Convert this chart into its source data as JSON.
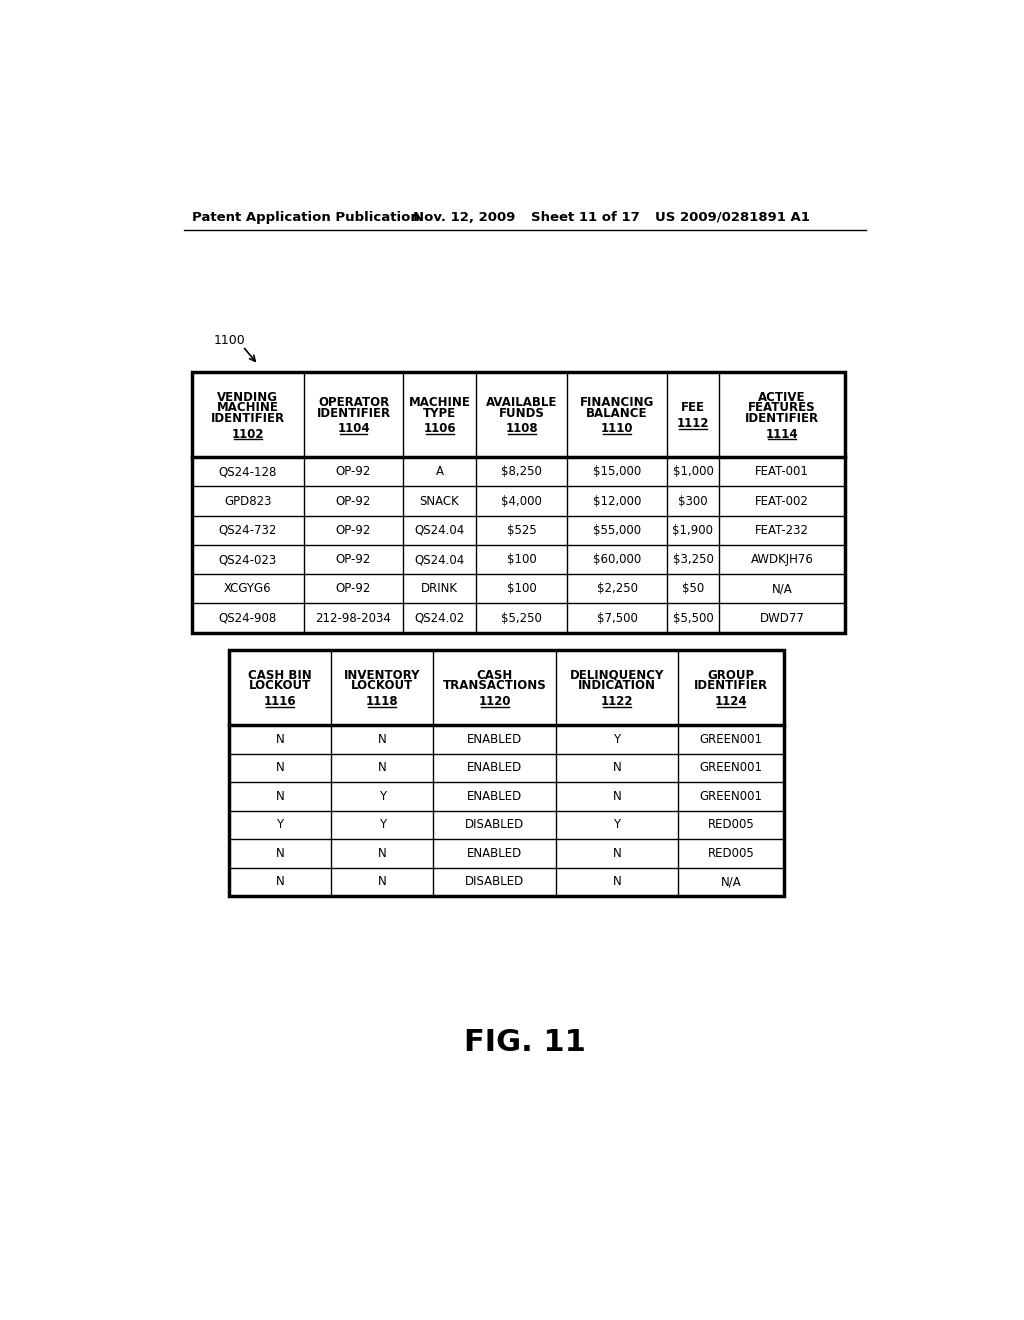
{
  "header_text": "Patent Application Publication",
  "header_date": "Nov. 12, 2009",
  "header_sheet": "Sheet 11 of 17",
  "header_patent": "US 2009/0281891 A1",
  "fig_label": "FIG. 11",
  "label_1100": "1100",
  "table1": {
    "col_headers": [
      [
        "VENDING\nMACHINE\nIDENTIFIER",
        "1102"
      ],
      [
        "OPERATOR\nIDENTIFIER",
        "1104"
      ],
      [
        "MACHINE\nTYPE",
        "1106"
      ],
      [
        "AVAILABLE\nFUNDS",
        "1108"
      ],
      [
        "FINANCING\nBALANCE",
        "1110"
      ],
      [
        "FEE",
        "1112"
      ],
      [
        "ACTIVE\nFEATURES\nIDENTIFIER",
        "1114"
      ]
    ],
    "rows": [
      [
        "QS24-128",
        "OP-92",
        "A",
        "$8,250",
        "$15,000",
        "$1,000",
        "FEAT-001"
      ],
      [
        "GPD823",
        "OP-92",
        "SNACK",
        "$4,000",
        "$12,000",
        "$300",
        "FEAT-002"
      ],
      [
        "QS24-732",
        "OP-92",
        "QS24.04",
        "$525",
        "$55,000",
        "$1,900",
        "FEAT-232"
      ],
      [
        "QS24-023",
        "OP-92",
        "QS24.04",
        "$100",
        "$60,000",
        "$3,250",
        "AWDKJH76"
      ],
      [
        "XCGYG6",
        "OP-92",
        "DRINK",
        "$100",
        "$2,250",
        "$50",
        "N/A"
      ],
      [
        "QS24-908",
        "212-98-2034",
        "QS24.02",
        "$5,250",
        "$7,500",
        "$5,500",
        "DWD77"
      ]
    ]
  },
  "table2": {
    "col_headers": [
      [
        "CASH BIN\nLOCKOUT",
        "1116"
      ],
      [
        "INVENTORY\nLOCKOUT",
        "1118"
      ],
      [
        "CASH\nTRANSACTIONS",
        "1120"
      ],
      [
        "DELINQUENCY\nINDICATION",
        "1122"
      ],
      [
        "GROUP\nIDENTIFIER",
        "1124"
      ]
    ],
    "rows": [
      [
        "N",
        "N",
        "ENABLED",
        "Y",
        "GREEN001"
      ],
      [
        "N",
        "N",
        "ENABLED",
        "N",
        "GREEN001"
      ],
      [
        "N",
        "Y",
        "ENABLED",
        "N",
        "GREEN001"
      ],
      [
        "Y",
        "Y",
        "DISABLED",
        "Y",
        "RED005"
      ],
      [
        "N",
        "N",
        "ENABLED",
        "N",
        "RED005"
      ],
      [
        "N",
        "N",
        "DISABLED",
        "N",
        "N/A"
      ]
    ]
  },
  "bg_color": "#ffffff",
  "text_color": "#000000",
  "line_color": "#000000"
}
